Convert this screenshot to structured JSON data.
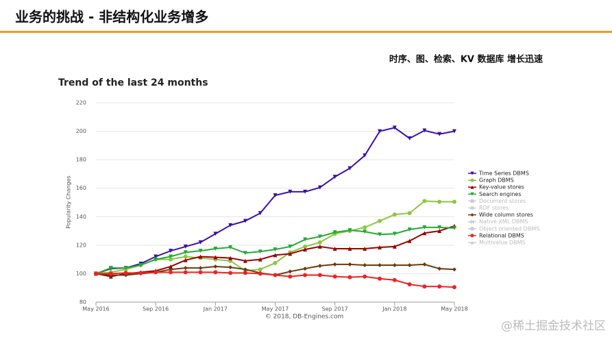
{
  "header": {
    "title": "业务的挑战 - 非结构化业务增多",
    "subtitle": "时序、图、检索、KV 数据库 增长迅速"
  },
  "chart_data": {
    "type": "line",
    "title": "Trend of the last 24 months",
    "y_label": "Popularity Changes",
    "source": "© 2018, DB-Engines.com",
    "categories": [
      "May 2016",
      null,
      null,
      null,
      "Sep 2016",
      null,
      null,
      null,
      "Jan 2017",
      null,
      null,
      null,
      "May 2017",
      null,
      null,
      null,
      "Sep 2017",
      null,
      null,
      null,
      "Jan 2018",
      null,
      null,
      null,
      "May 2018"
    ],
    "ylim": [
      80,
      220
    ],
    "yticks": [
      80,
      100,
      120,
      140,
      160,
      180,
      200,
      220
    ],
    "grid": true,
    "series": [
      {
        "name": "Time Series DBMS",
        "color": "#3a0fa8",
        "marker": "triangle-down",
        "values": [
          100,
          103.5,
          104,
          107,
          112,
          116,
          119,
          122,
          128,
          134,
          137,
          142.5,
          155,
          157.5,
          157.5,
          160.5,
          168,
          174,
          183,
          200,
          202.5,
          195,
          200.5,
          198,
          200
        ]
      },
      {
        "name": "Graph DBMS",
        "color": "#8cc63f",
        "marker": "circle",
        "values": [
          100,
          101,
          103,
          106,
          110,
          110,
          112,
          111,
          110,
          109,
          102,
          103,
          107.5,
          115,
          119,
          122,
          128,
          130,
          132.5,
          137,
          141.5,
          142.5,
          151,
          150.5,
          150.5
        ]
      },
      {
        "name": "Key-value stores",
        "color": "#990000",
        "marker": "triangle-up",
        "values": [
          100,
          98,
          100,
          101,
          102,
          105,
          109.5,
          112,
          111.5,
          111,
          109,
          110,
          113,
          114,
          117,
          119,
          117.5,
          117.5,
          117.5,
          118.5,
          119,
          123,
          128.5,
          130,
          133.5
        ]
      },
      {
        "name": "Search engines",
        "color": "#22aa33",
        "marker": "triangle-down",
        "values": [
          100,
          104,
          104,
          106,
          110,
          112,
          115,
          116,
          117.5,
          118.5,
          114.5,
          115.5,
          117,
          119,
          124,
          126,
          129,
          130.5,
          129.5,
          127.5,
          128,
          131,
          132.5,
          132.5,
          132
        ]
      },
      {
        "name": "Document stores",
        "color": "#cccccc",
        "marker": "square",
        "visible": false
      },
      {
        "name": "RDF stores",
        "color": "#cccccc",
        "marker": "circle",
        "visible": false
      },
      {
        "name": "Wide column stores",
        "color": "#6b3a0e",
        "marker": "diamond",
        "values": [
          100,
          99,
          99,
          100,
          101,
          103,
          104,
          104,
          105,
          104.5,
          103,
          100.5,
          99,
          101.5,
          103.5,
          105.5,
          106.5,
          106.5,
          106,
          106,
          106,
          106,
          106.5,
          103.5,
          103
        ]
      },
      {
        "name": "Native XML DBMS",
        "color": "#cccccc",
        "marker": "cross",
        "visible": false
      },
      {
        "name": "Object oriented DBMS",
        "color": "#cccccc",
        "marker": "square",
        "visible": false
      },
      {
        "name": "Relational DBMS",
        "color": "#ee2222",
        "marker": "circle",
        "values": [
          100,
          100,
          100.5,
          100.5,
          101,
          101,
          101,
          101,
          101,
          100.5,
          100.5,
          100,
          99,
          98,
          99,
          99,
          98,
          97.5,
          98,
          96.5,
          95.5,
          92.5,
          91,
          91,
          90.5
        ]
      },
      {
        "name": "Multivalue DBMS",
        "color": "#cccccc",
        "marker": "triangle-up",
        "visible": false
      }
    ]
  },
  "watermark": "@稀土掘金技术社区"
}
